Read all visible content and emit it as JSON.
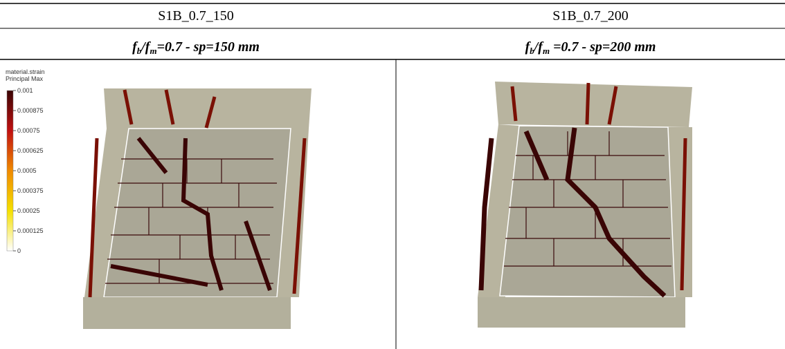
{
  "table": {
    "columns": [
      {
        "title": "S1B_0.7_150",
        "caption": [
          {
            "text": "f"
          },
          {
            "text": "b",
            "sub": true
          },
          {
            "text": "/f"
          },
          {
            "text": "m",
            "sub": true
          },
          {
            "text": "=0.7 - sp=150 mm"
          }
        ]
      },
      {
        "title": "S1B_0.7_200",
        "caption": [
          {
            "text": "f"
          },
          {
            "text": "b",
            "sub": true
          },
          {
            "text": "/f"
          },
          {
            "text": "m",
            "sub": true
          },
          {
            "text": " =0.7 - sp=200 mm"
          }
        ]
      }
    ],
    "legend": {
      "title": [
        "material.strain",
        "Principal Max"
      ],
      "labels": [
        "0.001",
        "0.000875",
        "0.00075",
        "0.000625",
        "0.0005",
        "0.000375",
        "0.00025",
        "0.000125",
        "0"
      ]
    }
  }
}
